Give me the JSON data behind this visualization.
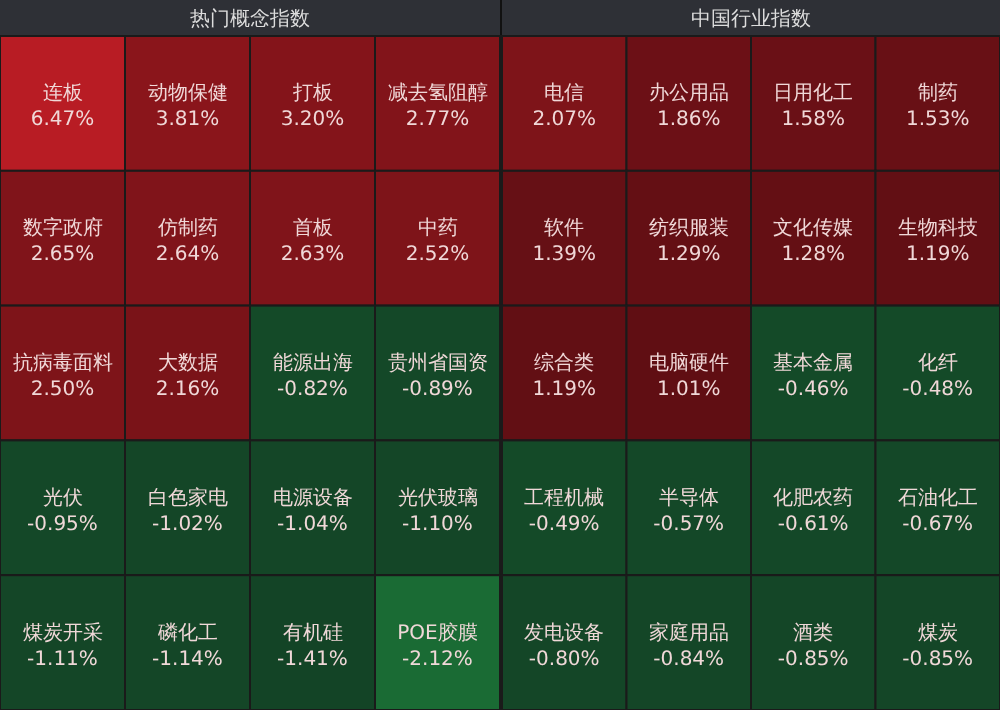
{
  "chart_data": [
    {
      "type": "other",
      "title": "热门概念指数",
      "categories": [
        "连板",
        "动物保健",
        "打板",
        "减去氢阻醇",
        "数字政府",
        "仿制药",
        "首板",
        "中药",
        "抗病毒面料",
        "大数据",
        "能源出海",
        "贵州省国资",
        "光伏",
        "白色家电",
        "电源设备",
        "光伏玻璃",
        "煤炭开采",
        "磷化工",
        "有机硅",
        "POE胶膜"
      ],
      "values": [
        6.47,
        3.81,
        3.2,
        2.77,
        2.65,
        2.64,
        2.63,
        2.52,
        2.5,
        2.16,
        -0.82,
        -0.89,
        -0.95,
        -1.02,
        -1.04,
        -1.1,
        -1.11,
        -1.14,
        -1.41,
        -2.12
      ],
      "value_labels": [
        "6.47%",
        "3.81%",
        "3.20%",
        "2.77%",
        "2.65%",
        "2.64%",
        "2.63%",
        "2.52%",
        "2.50%",
        "2.16%",
        "-0.82%",
        "-0.89%",
        "-0.95%",
        "-1.02%",
        "-1.04%",
        "-1.10%",
        "-1.11%",
        "-1.14%",
        "-1.41%",
        "-2.12%"
      ],
      "colors": [
        "#b81c24",
        "#8a151b",
        "#84141a",
        "#82141a",
        "#80141a",
        "#80141a",
        "#80141a",
        "#7e1419",
        "#7e1419",
        "#7a1318",
        "#144a28",
        "#144828",
        "#144828",
        "#144627",
        "#144627",
        "#144627",
        "#144627",
        "#144627",
        "#134426",
        "#1a6b34"
      ]
    },
    {
      "type": "other",
      "title": "中国行业指数",
      "categories": [
        "电信",
        "办公用品",
        "日用化工",
        "制药",
        "软件",
        "纺织服装",
        "文化传媒",
        "生物科技",
        "综合类",
        "电脑硬件",
        "基本金属",
        "化纤",
        "工程机械",
        "半导体",
        "化肥农药",
        "石油化工",
        "发电设备",
        "家庭用品",
        "酒类",
        "煤炭"
      ],
      "values": [
        2.07,
        1.86,
        1.58,
        1.53,
        1.39,
        1.29,
        1.28,
        1.19,
        1.19,
        1.01,
        -0.46,
        -0.48,
        -0.49,
        -0.57,
        -0.61,
        -0.67,
        -0.8,
        -0.84,
        -0.85,
        -0.85
      ],
      "value_labels": [
        "2.07%",
        "1.86%",
        "1.58%",
        "1.53%",
        "1.39%",
        "1.29%",
        "1.28%",
        "1.19%",
        "1.19%",
        "1.01%",
        "-0.46%",
        "-0.48%",
        "-0.49%",
        "-0.57%",
        "-0.61%",
        "-0.67%",
        "-0.80%",
        "-0.84%",
        "-0.85%",
        "-0.85%"
      ],
      "colors": [
        "#7e1419",
        "#6c1016",
        "#6a1016",
        "#681015",
        "#661015",
        "#640f14",
        "#640f14",
        "#620f14",
        "#620f14",
        "#600e13",
        "#144a28",
        "#144a28",
        "#144a28",
        "#144828",
        "#144828",
        "#144828",
        "#144627",
        "#144627",
        "#144627",
        "#144627"
      ]
    }
  ]
}
